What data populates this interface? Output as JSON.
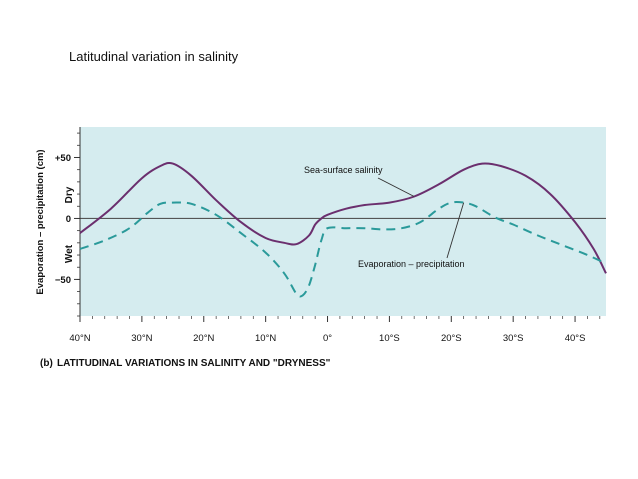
{
  "slide": {
    "title": "Latitudinal variation in salinity"
  },
  "chart_data": {
    "type": "line",
    "caption_letter": "(b)",
    "caption": "LATITUDINAL VARIATIONS IN SALINITY AND \"DRYNESS\"",
    "ylabel": "Evaporation – precipitation (cm)",
    "ylabel_dry": "Dry",
    "ylabel_wet": "Wet",
    "xlim": [
      40,
      -45
    ],
    "ylim": [
      -80,
      75
    ],
    "x_ticks": [
      {
        "value": 40,
        "label": "40°N"
      },
      {
        "value": 30,
        "label": "30°N"
      },
      {
        "value": 20,
        "label": "20°N"
      },
      {
        "value": 10,
        "label": "10°N"
      },
      {
        "value": 0,
        "label": "0°"
      },
      {
        "value": -10,
        "label": "10°S"
      },
      {
        "value": -20,
        "label": "20°S"
      },
      {
        "value": -30,
        "label": "30°S"
      },
      {
        "value": -40,
        "label": "40°S"
      }
    ],
    "y_ticks": [
      {
        "value": 50,
        "label": "+50"
      },
      {
        "value": 0,
        "label": "0"
      },
      {
        "value": -50,
        "label": "−50"
      }
    ],
    "background_color": "#d5ecef",
    "zero_line_color": "#555555",
    "series": [
      {
        "name": "Sea-surface salinity",
        "color": "#6b2f6e",
        "dash": "solid",
        "x": [
          40,
          35,
          30,
          27,
          25,
          22,
          18,
          14,
          10,
          7,
          5,
          3,
          2,
          1,
          0,
          -3,
          -6,
          -10,
          -14,
          -18,
          -22,
          -25,
          -28,
          -32,
          -36,
          -40,
          -43,
          -45
        ],
        "y": [
          -12,
          8,
          33,
          43,
          45,
          35,
          15,
          -3,
          -16,
          -20,
          -21,
          -14,
          -5,
          0,
          3,
          8,
          11,
          13,
          18,
          28,
          40,
          45,
          43,
          35,
          20,
          -3,
          -25,
          -45
        ]
      },
      {
        "name": "Evaporation – precipitation",
        "color": "#2a9a9a",
        "dash": "dashed",
        "x": [
          40,
          36,
          32,
          29,
          27,
          25,
          22,
          18,
          14,
          10,
          7,
          5,
          4,
          3,
          2,
          1,
          0,
          -3,
          -6,
          -9,
          -12,
          -15,
          -18,
          -20,
          -22,
          -24,
          -27,
          -30,
          -34,
          -38,
          -42,
          -45
        ],
        "y": [
          -25,
          -18,
          -8,
          5,
          12,
          13,
          12,
          3,
          -12,
          -28,
          -45,
          -62,
          -63,
          -55,
          -38,
          -18,
          -8,
          -8,
          -8,
          -9,
          -8,
          -3,
          8,
          13,
          13,
          10,
          1,
          -5,
          -14,
          -22,
          -30,
          -37
        ]
      }
    ],
    "annotations": [
      {
        "text": "Sea-surface salinity",
        "points_to_x": -14,
        "points_to_y": 18
      },
      {
        "text": "Evaporation – precipitation",
        "points_to_x": -22,
        "points_to_y": 13
      }
    ]
  }
}
